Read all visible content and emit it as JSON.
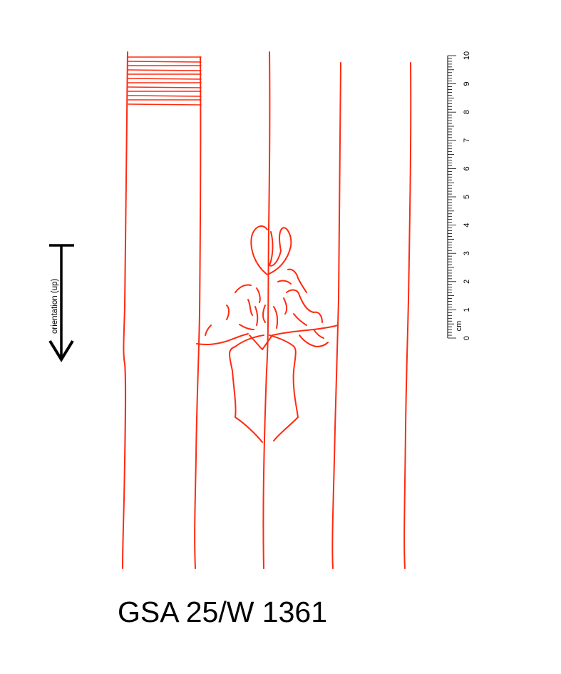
{
  "caption": "GSA 25/W 1361",
  "orientation_label": "orientation (up)",
  "scale": {
    "unit_label": "cm",
    "tick_labels": [
      "0",
      "1",
      "2",
      "3",
      "4",
      "5",
      "6",
      "7",
      "8",
      "9",
      "10"
    ],
    "major_count": 10,
    "minor_per_major": 10
  },
  "colors": {
    "drawing": "#ff2a10",
    "ink": "#000000",
    "background": "#ffffff"
  }
}
